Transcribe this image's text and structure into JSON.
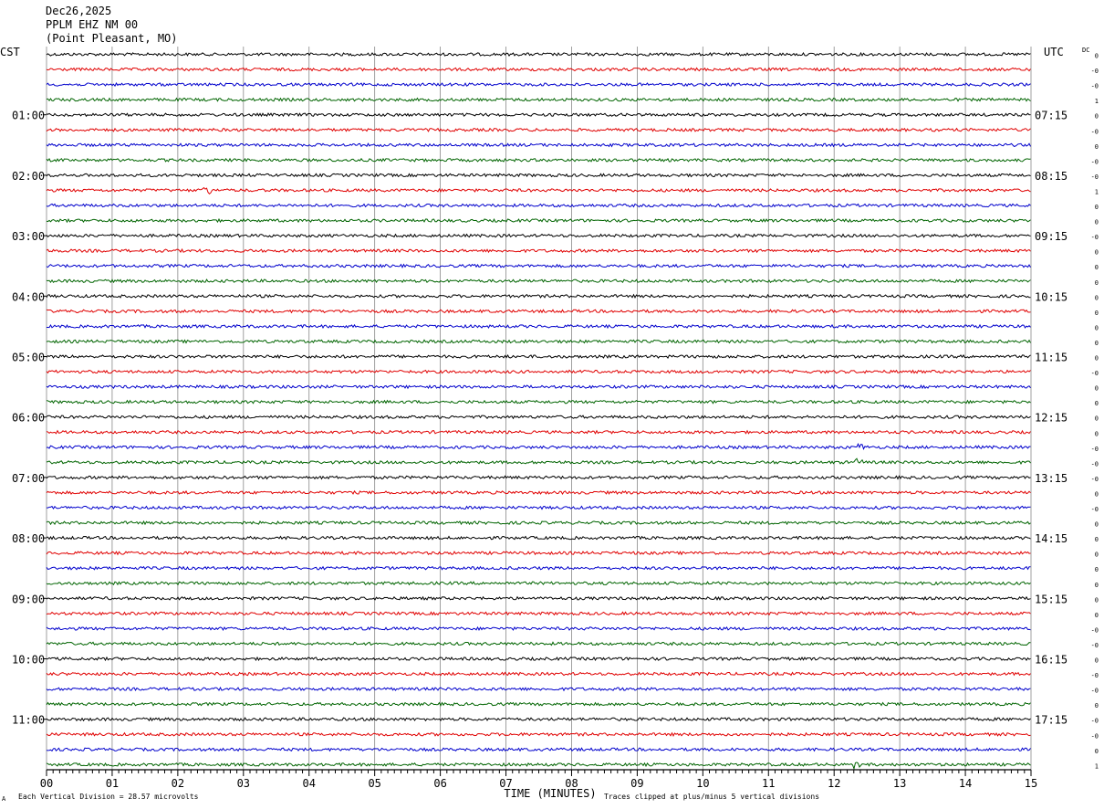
{
  "header": {
    "date": "Dec26,2025",
    "station": "PPLM EHZ NM 00",
    "location": "(Point Pleasant, MO)"
  },
  "axis_labels": {
    "left_timezone": "CST",
    "right_timezone": "UTC",
    "right_column_header": "DC",
    "x_axis_title": "TIME (MINUTES)"
  },
  "footer": {
    "mark": "A",
    "scale_note": "Each Vertical Division =   28.57 microvolts",
    "clip_note": "Traces clipped at plus/minus 5 vertical divisions"
  },
  "colors": {
    "trace_cycle": [
      "#000000",
      "#e00000",
      "#0000cc",
      "#006400"
    ],
    "grid": "#888888",
    "text": "#000000"
  },
  "chart_data": {
    "type": "line",
    "title": "Dec26,2025 PPLM EHZ NM 00 (Point Pleasant, MO)",
    "xlabel": "TIME (MINUTES)",
    "xlim": [
      0,
      15
    ],
    "x_ticks": [
      "00",
      "01",
      "02",
      "03",
      "04",
      "05",
      "06",
      "07",
      "08",
      "09",
      "10",
      "11",
      "12",
      "13",
      "14",
      "15"
    ],
    "line_minutes": 15,
    "trace_count": 48,
    "left_hour_labels": [
      "01:00",
      "02:00",
      "03:00",
      "04:00",
      "05:00",
      "06:00",
      "07:00",
      "08:00",
      "09:00",
      "10:00",
      "11:00"
    ],
    "right_hour_labels": [
      "07:15",
      "08:15",
      "09:15",
      "10:15",
      "11:15",
      "12:15",
      "13:15",
      "14:15",
      "15:15",
      "16:15",
      "17:15"
    ],
    "dc_offsets": [
      "0",
      "-0",
      "-0",
      "1",
      "0",
      "-0",
      "0",
      "-0",
      "-0",
      "1",
      "0",
      "0",
      "-0",
      "0",
      "0",
      "0",
      "0",
      "0",
      "0",
      "0",
      "0",
      "-0",
      "0",
      "0",
      "0",
      "0",
      "-0",
      "-0",
      "-0",
      "0",
      "-0",
      "0",
      "0",
      "0",
      "0",
      "0",
      "0",
      "0",
      "-0",
      "-0",
      "0",
      "-0",
      "-0",
      "0",
      "-0",
      "-0",
      "0",
      "1"
    ],
    "events": [
      {
        "trace": 9,
        "minute": 2.45,
        "amplitude": "small"
      },
      {
        "trace": 26,
        "minute": 12.4,
        "amplitude": "small"
      },
      {
        "trace": 27,
        "minute": 12.35,
        "amplitude": "small"
      },
      {
        "trace": 47,
        "minute": 12.3,
        "amplitude": "small"
      }
    ],
    "grid": true
  }
}
